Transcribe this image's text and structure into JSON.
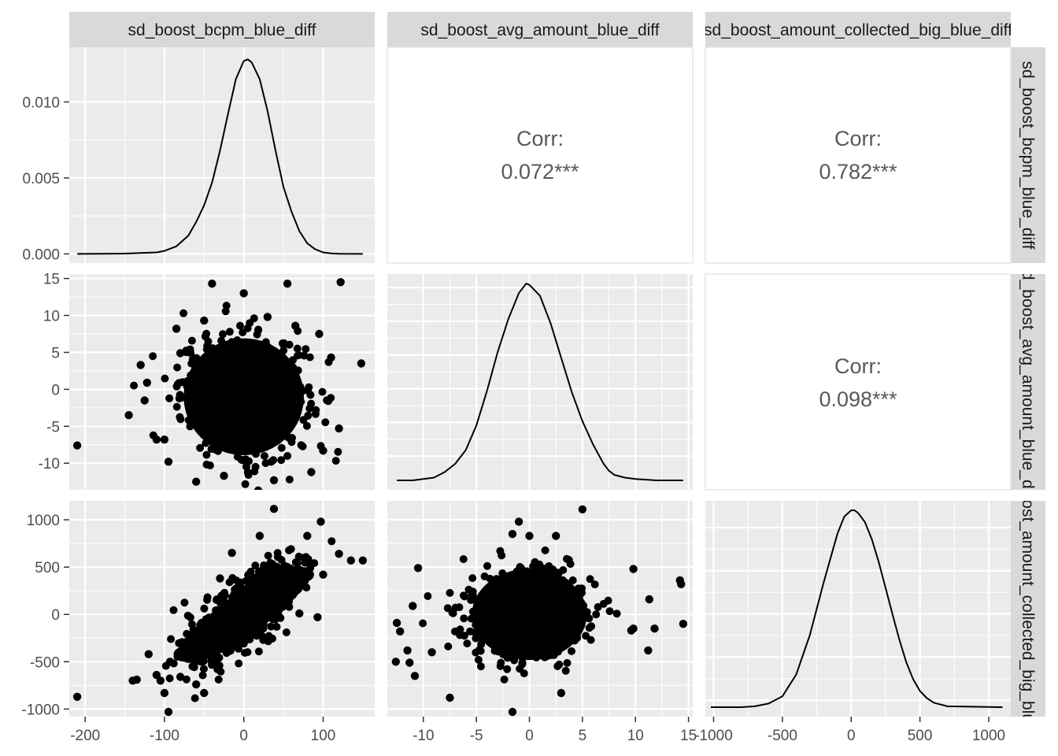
{
  "chart_data": {
    "type": "scatter-matrix",
    "variables": [
      "sd_boost_bcpm_blue_diff",
      "sd_boost_avg_amount_blue_diff",
      "sd_boost_amount_collected_big_blue_diff"
    ],
    "strip_top": [
      "sd_boost_bcpm_blue_diff",
      "sd_boost_avg_amount_blue_diff",
      "sd_boost_amount_collected_big_blue_diff"
    ],
    "strip_right": [
      "sd_boost_bcpm_blue_diff",
      "sd_boost_avg_amount_blue_diff",
      "sd_boost_amount_collected_big_blue_diff"
    ],
    "x_axes": [
      {
        "range": [
          -220,
          165
        ],
        "ticks": [
          -200,
          -100,
          0,
          100
        ],
        "labels": [
          "-200",
          "-100",
          "0",
          "100"
        ]
      },
      {
        "range": [
          -13.4,
          15.4
        ],
        "ticks": [
          -10,
          -5,
          0,
          5,
          10,
          15
        ],
        "labels": [
          "-10",
          "-5",
          "0",
          "5",
          "10",
          "15"
        ]
      },
      {
        "range": [
          -1060,
          1160
        ],
        "ticks": [
          -1000,
          -500,
          0,
          500,
          1000
        ],
        "labels": [
          "-1000",
          "-500",
          "0",
          "500",
          "1000"
        ]
      }
    ],
    "y_axes": [
      {
        "range": [
          -0.0006,
          0.0136
        ],
        "ticks": [
          0.0,
          0.005,
          0.01
        ],
        "labels": [
          "0.000",
          "0.005",
          "0.010"
        ]
      },
      {
        "range": [
          -13.6,
          15.6
        ],
        "ticks": [
          -10,
          -5,
          0,
          5,
          10,
          15
        ],
        "labels": [
          "-10",
          "-5",
          "0",
          "5",
          "10",
          "15"
        ]
      },
      {
        "range": [
          -1080,
          1200
        ],
        "ticks": [
          -1000,
          -500,
          0,
          500,
          1000
        ],
        "labels": [
          "-1000",
          "-500",
          "0",
          "500",
          "1000"
        ]
      }
    ],
    "correlations": [
      {
        "row": 0,
        "col": 1,
        "label": "Corr:",
        "value": "0.072***"
      },
      {
        "row": 0,
        "col": 2,
        "label": "Corr:",
        "value": "0.782***"
      },
      {
        "row": 1,
        "col": 2,
        "label": "Corr:",
        "value": "0.098***"
      }
    ],
    "densities": [
      {
        "var": 0,
        "x": [
          -210,
          -150,
          -110,
          -100,
          -85,
          -70,
          -60,
          -50,
          -40,
          -30,
          -20,
          -10,
          0,
          5,
          10,
          20,
          30,
          40,
          50,
          60,
          70,
          80,
          90,
          100,
          110,
          120,
          150
        ],
        "y": [
          0.0,
          2e-05,
          0.0001,
          0.0002,
          0.0005,
          0.0012,
          0.0021,
          0.0032,
          0.0047,
          0.0068,
          0.0092,
          0.0115,
          0.0127,
          0.0128,
          0.0126,
          0.0115,
          0.0094,
          0.0068,
          0.0044,
          0.0028,
          0.0015,
          0.0007,
          0.0003,
          0.0001,
          4e-05,
          1e-05,
          0.0
        ]
      },
      {
        "var": 1,
        "x": [
          -12.5,
          -11,
          -9,
          -8,
          -7,
          -6,
          -5,
          -4,
          -3,
          -2,
          -1,
          -0.3,
          0,
          0.5,
          1,
          2,
          3,
          4,
          5,
          6,
          7,
          7.5,
          8,
          9,
          10,
          12,
          14.5
        ],
        "y": [
          0.0,
          0.0,
          0.002,
          0.006,
          0.012,
          0.022,
          0.04,
          0.065,
          0.093,
          0.117,
          0.136,
          0.143,
          0.142,
          0.138,
          0.134,
          0.114,
          0.089,
          0.064,
          0.043,
          0.026,
          0.012,
          0.007,
          0.004,
          0.002,
          0.001,
          0.0,
          0.0
        ]
      },
      {
        "var": 2,
        "x": [
          -1020,
          -800,
          -700,
          -600,
          -500,
          -400,
          -300,
          -200,
          -150,
          -100,
          -50,
          0,
          25,
          50,
          100,
          150,
          200,
          250,
          300,
          350,
          400,
          450,
          500,
          550,
          600,
          700,
          1100
        ],
        "y": [
          0.0,
          0.0,
          1e-05,
          4e-05,
          0.00012,
          0.00036,
          0.0008,
          0.00138,
          0.00165,
          0.00192,
          0.00211,
          0.00218,
          0.00218,
          0.00215,
          0.00205,
          0.00186,
          0.00161,
          0.00132,
          0.00103,
          0.00075,
          0.0005,
          0.00031,
          0.00018,
          0.0001,
          5e-05,
          1e-05,
          0.0
        ]
      }
    ],
    "scatter_clouds": [
      {
        "row": 1,
        "col": 0,
        "center": [
          0,
          -1
        ],
        "core_ellipse": {
          "rx": 88,
          "ry": 9.2
        },
        "outliers": [
          [
            -210,
            -7.6
          ],
          [
            148,
            3.5
          ],
          [
            122,
            14.5
          ],
          [
            -40,
            14.3
          ],
          [
            55,
            14.3
          ],
          [
            0,
            13.0
          ],
          [
            -145,
            -3.5
          ],
          [
            -130,
            3.3
          ],
          [
            -125,
            -1.5
          ],
          [
            -122,
            0.9
          ],
          [
            -110,
            -6.8
          ],
          [
            -95,
            -9.8
          ],
          [
            -60,
            -12.5
          ],
          [
            -25,
            -11.7
          ],
          [
            38,
            -12.3
          ],
          [
            85,
            -11.2
          ],
          [
            120,
            -5.3
          ],
          [
            110,
            4.3
          ],
          [
            95,
            7.5
          ],
          [
            -85,
            8.2
          ],
          [
            -80,
            4.9
          ],
          [
            -50,
            9.3
          ],
          [
            30,
            9.8
          ],
          [
            65,
            8.6
          ],
          [
            100,
            -8.3
          ],
          [
            -100,
            -6.8
          ]
        ]
      },
      {
        "row": 2,
        "col": 0,
        "center": [
          0,
          0
        ],
        "slope": 5.6,
        "core_ellipse": {
          "rx": 75,
          "ry": 420
        },
        "outliers": [
          [
            -210,
            -870
          ],
          [
            -95,
            -1030
          ],
          [
            38,
            1115
          ],
          [
            97,
            980
          ],
          [
            150,
            570
          ],
          [
            135,
            570
          ],
          [
            -135,
            -690
          ],
          [
            -110,
            -640
          ],
          [
            -50,
            -830
          ],
          [
            -100,
            -830
          ],
          [
            -80,
            -660
          ],
          [
            -60,
            -740
          ],
          [
            -140,
            -700
          ],
          [
            -105,
            -700
          ],
          [
            -93,
            -500
          ],
          [
            20,
            830
          ],
          [
            80,
            830
          ],
          [
            120,
            640
          ],
          [
            100,
            420
          ],
          [
            93,
            -30
          ],
          [
            70,
            10
          ],
          [
            -10,
            -160
          ],
          [
            -120,
            -420
          ],
          [
            -15,
            650
          ],
          [
            -30,
            380
          ]
        ]
      },
      {
        "row": 2,
        "col": 1,
        "center": [
          0,
          0
        ],
        "core_ellipse": {
          "rx": 6.3,
          "ry": 560
        },
        "outliers": [
          [
            -12.5,
            -90
          ],
          [
            -12.2,
            -180
          ],
          [
            -11,
            90
          ],
          [
            -11.5,
            -380
          ],
          [
            -11.3,
            -510
          ],
          [
            -10.8,
            -650
          ],
          [
            -7.5,
            -880
          ],
          [
            -1.6,
            -1030
          ],
          [
            -1.0,
            980
          ],
          [
            -1.6,
            850
          ],
          [
            0,
            830
          ],
          [
            2.5,
            830
          ],
          [
            5,
            1110
          ],
          [
            3,
            -830
          ],
          [
            14.5,
            -100
          ],
          [
            14.2,
            360
          ],
          [
            14.3,
            320
          ],
          [
            11.3,
            160
          ],
          [
            11.8,
            -150
          ],
          [
            11.2,
            -380
          ],
          [
            9.8,
            480
          ],
          [
            -10.5,
            490
          ],
          [
            -12.6,
            -500
          ],
          [
            -9.2,
            -400
          ],
          [
            9.8,
            -150
          ],
          [
            9.6,
            -170
          ]
        ]
      }
    ]
  }
}
